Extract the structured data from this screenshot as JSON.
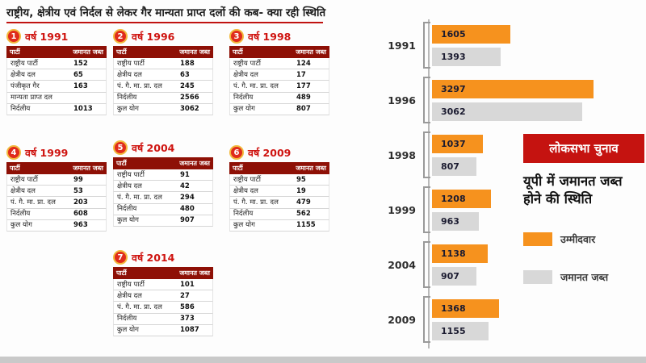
{
  "title": "राष्ट्रीय, क्षेत्रीय एवं निर्दल से लेकर गैर मान्यता प्राप्त दलों की कब- क्या रही स्थिति",
  "year_prefix": "वर्ष",
  "columns": {
    "party": "पार्टी",
    "value": "जमानत जब्त"
  },
  "tables": [
    {
      "number": "1",
      "year": "1991",
      "rows": [
        [
          "राष्ट्रीय पार्टी",
          "152"
        ],
        [
          "क्षेत्रीय दल",
          "65"
        ],
        [
          "पंजीकृत गैर",
          "163"
        ],
        [
          "मान्यता प्राप्त दल",
          ""
        ],
        [
          "निर्दलीय",
          "1013"
        ]
      ]
    },
    {
      "number": "2",
      "year": "1996",
      "rows": [
        [
          "राष्ट्रीय पार्टी",
          "188"
        ],
        [
          "क्षेत्रीय दल",
          "63"
        ],
        [
          "पं. गै. मा. प्रा. दल",
          "245"
        ],
        [
          "निर्दलीय",
          "2566"
        ],
        [
          "कुल योग",
          "3062"
        ]
      ]
    },
    {
      "number": "3",
      "year": "1998",
      "rows": [
        [
          "राष्ट्रीय पार्टी",
          "124"
        ],
        [
          "क्षेत्रीय दल",
          "17"
        ],
        [
          "पं. गै. मा. प्रा. दल",
          "177"
        ],
        [
          "निर्दलीय",
          "489"
        ],
        [
          "कुल योग",
          "807"
        ]
      ]
    },
    {
      "number": "4",
      "year": "1999",
      "rows": [
        [
          "राष्ट्रीय पार्टी",
          "99"
        ],
        [
          "क्षेत्रीय दल",
          "53"
        ],
        [
          "पं. गै. मा. प्रा. दल",
          "203"
        ],
        [
          "निर्दलीय",
          "608"
        ],
        [
          "कुल योग",
          "963"
        ]
      ]
    },
    {
      "number": "5",
      "year": "2004",
      "rows": [
        [
          "राष्ट्रीय पार्टी",
          "91"
        ],
        [
          "क्षेत्रीय दल",
          "42"
        ],
        [
          "पं. गै. मा. प्रा. दल",
          "294"
        ],
        [
          "निर्दलीय",
          "480"
        ],
        [
          "कुल योग",
          "907"
        ]
      ]
    },
    {
      "number": "6",
      "year": "2009",
      "rows": [
        [
          "राष्ट्रीय पार्टी",
          "95"
        ],
        [
          "क्षेत्रीय दल",
          "19"
        ],
        [
          "पं. गै. मा. प्रा. दल",
          "479"
        ],
        [
          "निर्दलीय",
          "562"
        ],
        [
          "कुल योग",
          "1155"
        ]
      ]
    },
    {
      "number": "7",
      "year": "2014",
      "rows": [
        [
          "राष्ट्रीय पार्टी",
          "101"
        ],
        [
          "क्षेत्रीय दल",
          "27"
        ],
        [
          "पं. गै. मा. प्रा. दल",
          "586"
        ],
        [
          "निर्दलीय",
          "373"
        ],
        [
          "कुल योग",
          "1087"
        ]
      ]
    }
  ],
  "chart_data": {
    "type": "bar",
    "orientation": "horizontal",
    "categories": [
      "1991",
      "1996",
      "1998",
      "1999",
      "2004",
      "2009"
    ],
    "series": [
      {
        "name": "उम्मीदवार",
        "color": "#f6921e",
        "values": [
          1605,
          3297,
          1037,
          1208,
          1138,
          1368
        ]
      },
      {
        "name": "जमानत जब्त",
        "color": "#d8d8d8",
        "values": [
          1393,
          3062,
          807,
          963,
          907,
          1155
        ]
      }
    ],
    "xlim": [
      0,
      3297
    ],
    "grid": false,
    "legend_position": "right",
    "title": "लोकसभा चुनाव",
    "subtitle": "यूपी में जमानत जब्त होने की स्थिति"
  },
  "colors": {
    "accent_red": "#c51310",
    "header_maroon": "#8e1006",
    "candidate_orange": "#f6921e",
    "forfeit_gray": "#d8d8d8"
  }
}
